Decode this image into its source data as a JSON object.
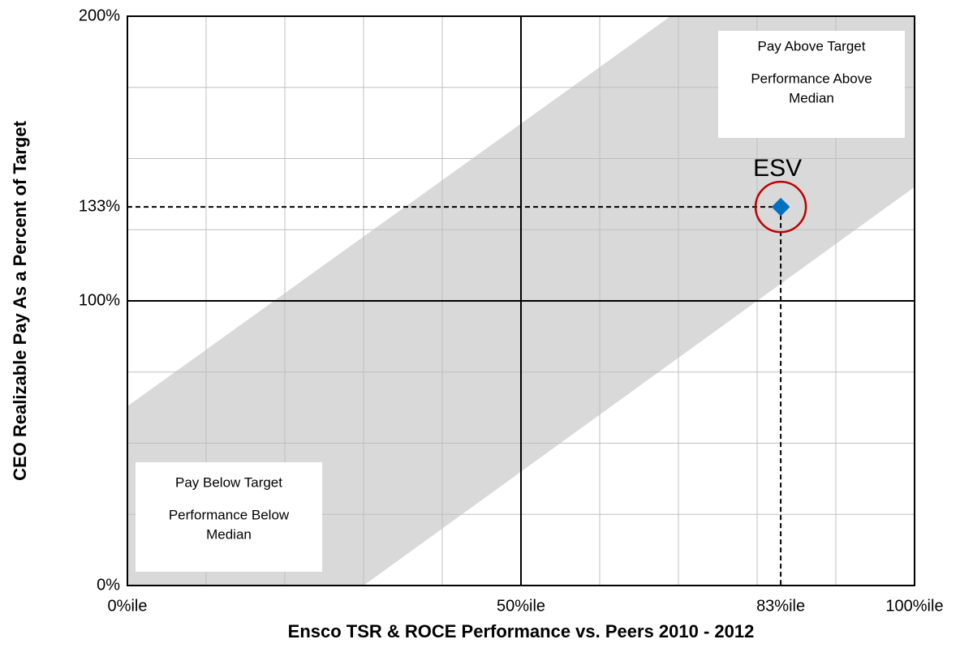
{
  "chart_data": {
    "type": "scatter",
    "xlabel": "Ensco TSR & ROCE Performance vs. Peers 2010 - 2012",
    "ylabel": "CEO Realizable Pay As a Percent of Target",
    "xlim": [
      0,
      100
    ],
    "ylim": [
      0,
      200
    ],
    "xticks": [
      {
        "value": 0,
        "label": "0%ile"
      },
      {
        "value": 50,
        "label": "50%ile"
      },
      {
        "value": 83,
        "label": "83%ile"
      },
      {
        "value": 100,
        "label": "100%ile"
      }
    ],
    "yticks": [
      {
        "value": 0,
        "label": "0%"
      },
      {
        "value": 100,
        "label": "100%"
      },
      {
        "value": 133,
        "label": "133%"
      },
      {
        "value": 200,
        "label": "200%"
      }
    ],
    "xgrid": [
      10,
      20,
      30,
      40,
      60,
      70,
      80,
      90
    ],
    "ygrid": [
      25,
      50,
      75,
      125,
      150,
      175
    ],
    "band": {
      "color": "#d9d9d9",
      "x": [
        0,
        30,
        100,
        100,
        69,
        0
      ],
      "y": [
        0,
        0,
        140,
        200,
        200,
        63
      ]
    },
    "series": [
      {
        "name": "ESV",
        "color": "#0070c0",
        "x": [
          83
        ],
        "values": [
          133
        ]
      }
    ],
    "highlight_color": "#c00000",
    "annotations": [
      {
        "lines": [
          "Pay Above Target",
          "Performance Above",
          "Median"
        ]
      },
      {
        "lines": [
          "Pay Below Target",
          "Performance Below",
          "Median"
        ]
      }
    ]
  }
}
